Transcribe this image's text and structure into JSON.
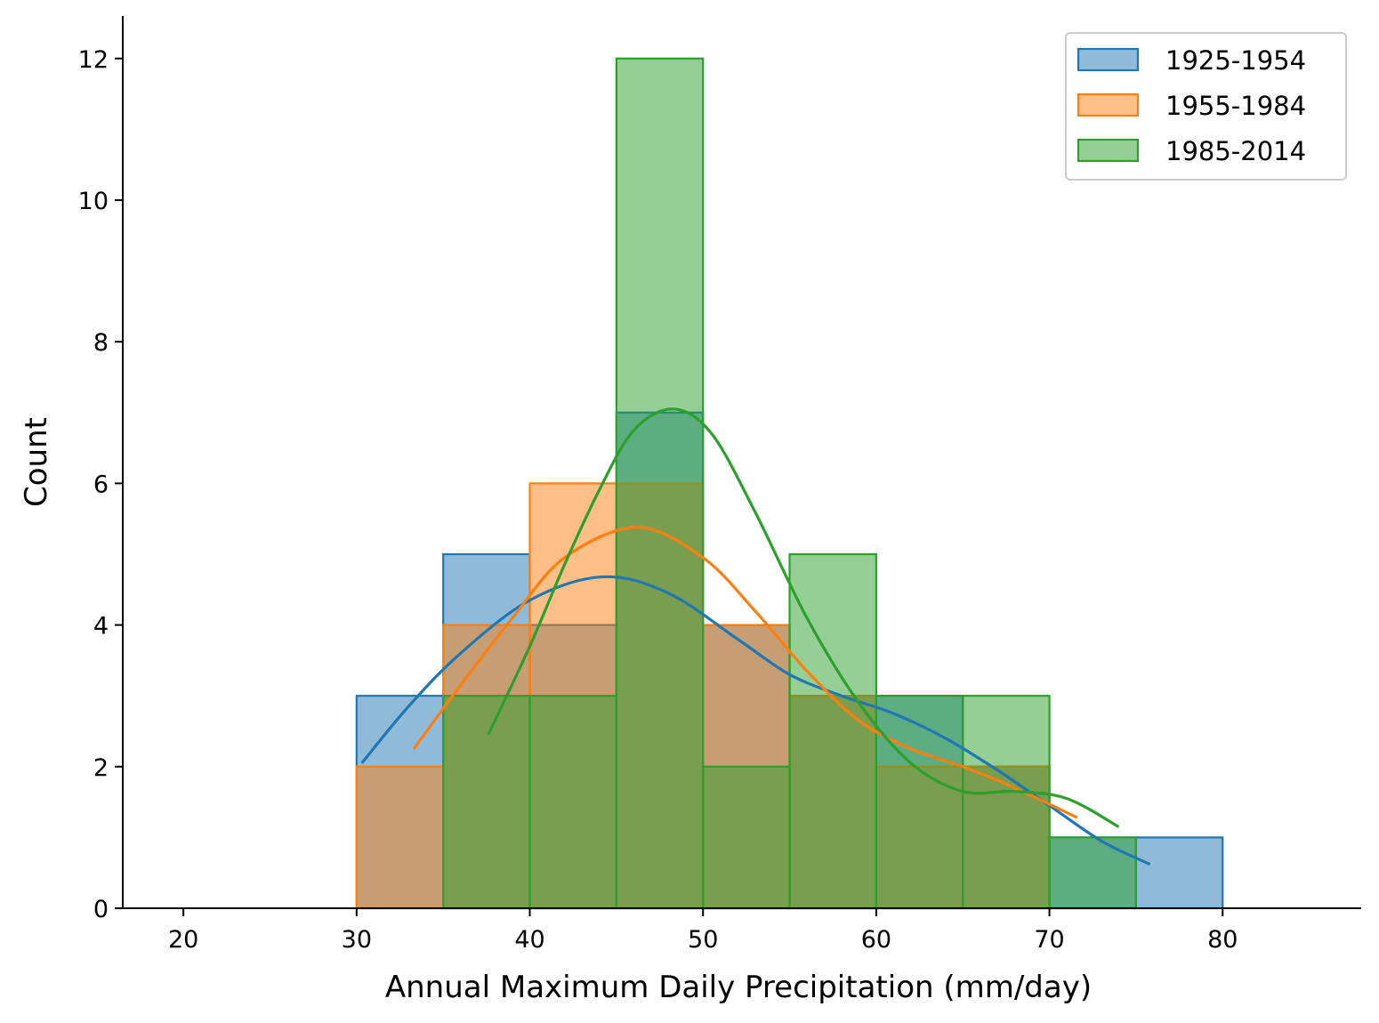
{
  "chart_data": {
    "type": "histogram",
    "title": "",
    "xlabel": "Annual Maximum Daily Precipitation (mm/day)",
    "ylabel": "Count",
    "xlim": [
      16.5,
      88.0
    ],
    "ylim": [
      0,
      12.6
    ],
    "xticks": [
      20,
      30,
      40,
      50,
      60,
      70,
      80
    ],
    "yticks": [
      0,
      2,
      4,
      6,
      8,
      10,
      12
    ],
    "bin_edges": [
      30,
      35,
      40,
      45,
      50,
      55,
      60,
      65,
      70,
      75,
      80
    ],
    "grid": false,
    "legend_position": "top-right",
    "series": [
      {
        "name": "1925-1954",
        "color": "#1f77b4",
        "counts": [
          3,
          5,
          4,
          7,
          4,
          3,
          3,
          2,
          1,
          1
        ],
        "kde": {
          "x": [
            30.3,
            33,
            36,
            40,
            44.2,
            48,
            52,
            55,
            58,
            61,
            64,
            67,
            70,
            73,
            75.8
          ],
          "y": [
            2.05,
            2.85,
            3.6,
            4.35,
            4.68,
            4.45,
            3.8,
            3.3,
            3.0,
            2.75,
            2.4,
            1.95,
            1.45,
            0.95,
            0.62
          ]
        }
      },
      {
        "name": "1955-1984",
        "color": "#ff7f0e",
        "counts": [
          2,
          4,
          6,
          6,
          4,
          3,
          2,
          2,
          0,
          0
        ],
        "kde": {
          "x": [
            33.3,
            36,
            39,
            42,
            46.2,
            50,
            53,
            56,
            59,
            62,
            65,
            68,
            71.6
          ],
          "y": [
            2.25,
            3.15,
            4.1,
            4.95,
            5.38,
            4.95,
            4.2,
            3.35,
            2.65,
            2.25,
            2.0,
            1.7,
            1.28
          ]
        }
      },
      {
        "name": "1985-2014",
        "color": "#2ca02c",
        "counts": [
          0,
          3,
          3,
          12,
          2,
          5,
          3,
          3,
          1,
          0
        ],
        "kde": {
          "x": [
            37.6,
            40,
            42,
            44,
            46,
            48.3,
            50.5,
            53,
            56,
            59,
            62,
            65,
            68,
            71,
            74
          ],
          "y": [
            2.45,
            3.7,
            4.85,
            5.9,
            6.75,
            7.05,
            6.7,
            5.6,
            4.1,
            2.9,
            2.05,
            1.65,
            1.65,
            1.55,
            1.15
          ]
        }
      }
    ]
  }
}
